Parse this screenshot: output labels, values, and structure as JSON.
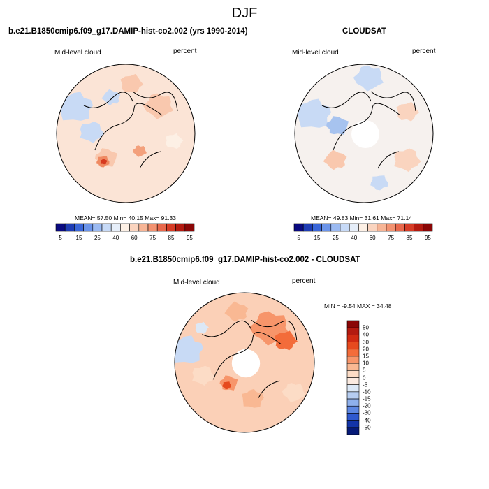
{
  "figure": {
    "title": "DJF"
  },
  "chart_data": [
    {
      "type": "heatmap",
      "projection": "north polar stereographic",
      "title": "b.e21.B1850cmip6.f09_g17.DAMIP-hist-co2.002 (yrs 1990-2014)",
      "variable": "Mid-level cloud",
      "units": "percent",
      "stats": {
        "mean_label": "MEAN=",
        "mean": "57.50",
        "min_label": "Min=",
        "min": "40.15",
        "max_label": "Max=",
        "max": "91.33"
      },
      "colorbar": {
        "orientation": "horizontal",
        "tick_labels": [
          "5",
          "15",
          "25",
          "40",
          "60",
          "75",
          "85",
          "95"
        ],
        "colors": [
          "#0a0a80",
          "#1e3cb4",
          "#3a66d8",
          "#6b94ea",
          "#9bbaf2",
          "#c7daf7",
          "#e6eef9",
          "#fdf0e5",
          "#fad4bf",
          "#f7b596",
          "#f29271",
          "#e8684c",
          "#d63c26",
          "#b31a10",
          "#8a0606"
        ]
      }
    },
    {
      "type": "heatmap",
      "projection": "north polar stereographic",
      "title": "CLOUDSAT",
      "variable": "Mid-level cloud",
      "units": "percent",
      "stats": {
        "mean_label": "MEAN=",
        "mean": "49.83",
        "min_label": "Min=",
        "min": "31.61",
        "max_label": "Max=",
        "max": "71.14"
      },
      "colorbar": {
        "orientation": "horizontal",
        "tick_labels": [
          "5",
          "15",
          "25",
          "40",
          "60",
          "75",
          "85",
          "95"
        ],
        "colors": [
          "#0a0a80",
          "#1e3cb4",
          "#3a66d8",
          "#6b94ea",
          "#9bbaf2",
          "#c7daf7",
          "#e6eef9",
          "#fdf0e5",
          "#fad4bf",
          "#f7b596",
          "#f29271",
          "#e8684c",
          "#d63c26",
          "#b31a10",
          "#8a0606"
        ]
      }
    },
    {
      "type": "heatmap",
      "projection": "north polar stereographic",
      "title": "b.e21.B1850cmip6.f09_g17.DAMIP-hist-co2.002 - CLOUDSAT",
      "variable": "Mid-level cloud",
      "units": "percent",
      "stats": {
        "min_label": "MIN =",
        "min": "-9.54",
        "max_label": "MAX =",
        "max": "34.48"
      },
      "colorbar": {
        "orientation": "vertical",
        "tick_labels": [
          "50",
          "40",
          "30",
          "20",
          "15",
          "10",
          "5",
          "0",
          "-5",
          "-10",
          "-15",
          "-20",
          "-30",
          "-40",
          "-50"
        ],
        "colors": [
          "#8a0606",
          "#b31a10",
          "#d02a12",
          "#e64a1e",
          "#f36c3a",
          "#f7956a",
          "#f9b893",
          "#fcdcc6",
          "#fbeae0",
          "#dce8f6",
          "#b6cdf1",
          "#8eb0ec",
          "#5d87e2",
          "#2f59cf",
          "#1334a8",
          "#061a78"
        ]
      }
    }
  ]
}
